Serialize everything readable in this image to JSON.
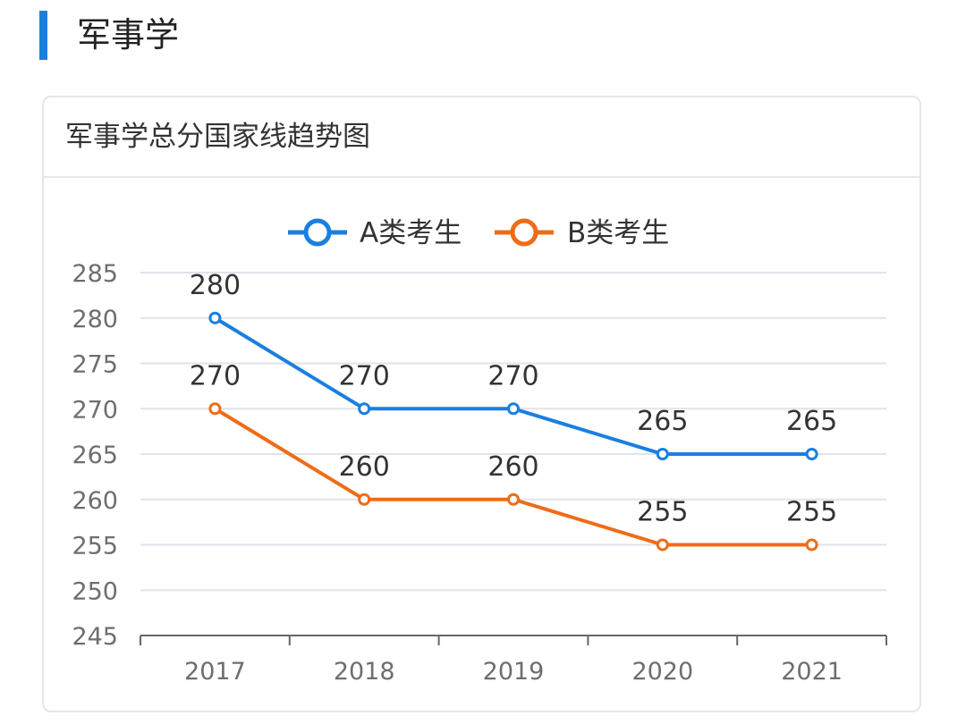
{
  "header": {
    "title": "军事学"
  },
  "card": {
    "title": "军事学总分国家线趋势图"
  },
  "chart_data": {
    "type": "line",
    "title": "军事学总分国家线趋势图",
    "categories": [
      "2017",
      "2018",
      "2019",
      "2020",
      "2021"
    ],
    "series": [
      {
        "name": "A类考生",
        "values": [
          280,
          270,
          270,
          265,
          265
        ],
        "color": "#1a7fe0"
      },
      {
        "name": "B类考生",
        "values": [
          270,
          260,
          260,
          255,
          255
        ],
        "color": "#ef6c17"
      }
    ],
    "y_ticks": [
      245,
      250,
      255,
      260,
      265,
      270,
      275,
      280,
      285
    ],
    "ylim": [
      245,
      285
    ],
    "grid": true,
    "legend": "top-center",
    "xlabel": "",
    "ylabel": ""
  }
}
